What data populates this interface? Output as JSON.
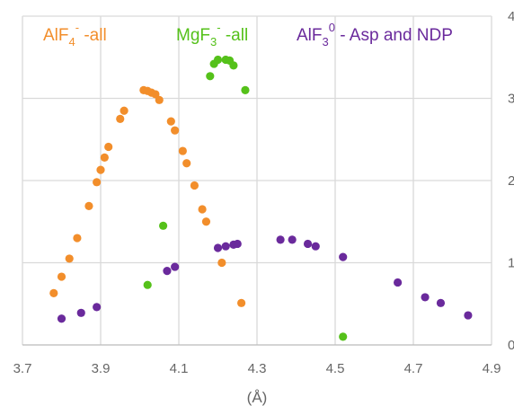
{
  "chart_data": {
    "type": "scatter",
    "xlabel": "(Å)",
    "ylabel": "",
    "xlim": [
      3.7,
      4.9
    ],
    "ylim": [
      0,
      4
    ],
    "x_ticks": [
      "3.7",
      "3.9",
      "4.1",
      "4.3",
      "4.5",
      "4.7",
      "4.9"
    ],
    "x_tick_values": [
      3.7,
      3.9,
      4.1,
      4.3,
      4.5,
      4.7,
      4.9
    ],
    "y_ticks": [
      "0",
      "1",
      "2",
      "3",
      "4"
    ],
    "y_tick_values": [
      0,
      1,
      2,
      3,
      4
    ],
    "grid": true,
    "legend_placement": "top",
    "series": [
      {
        "label_main": "AlF",
        "label_sub": "4",
        "label_sup": "-",
        "label_rest": " -all",
        "color": "#f28e2b",
        "points": [
          {
            "x": 3.78,
            "y": 0.63
          },
          {
            "x": 3.8,
            "y": 0.83
          },
          {
            "x": 3.82,
            "y": 1.05
          },
          {
            "x": 3.84,
            "y": 1.3
          },
          {
            "x": 3.87,
            "y": 1.69
          },
          {
            "x": 3.89,
            "y": 1.98
          },
          {
            "x": 3.9,
            "y": 2.13
          },
          {
            "x": 3.91,
            "y": 2.28
          },
          {
            "x": 3.92,
            "y": 2.41
          },
          {
            "x": 3.95,
            "y": 2.75
          },
          {
            "x": 3.96,
            "y": 2.85
          },
          {
            "x": 4.01,
            "y": 3.1
          },
          {
            "x": 4.02,
            "y": 3.09
          },
          {
            "x": 4.03,
            "y": 3.07
          },
          {
            "x": 4.04,
            "y": 3.05
          },
          {
            "x": 4.05,
            "y": 2.98
          },
          {
            "x": 4.08,
            "y": 2.72
          },
          {
            "x": 4.09,
            "y": 2.61
          },
          {
            "x": 4.11,
            "y": 2.36
          },
          {
            "x": 4.12,
            "y": 2.21
          },
          {
            "x": 4.14,
            "y": 1.94
          },
          {
            "x": 4.16,
            "y": 1.65
          },
          {
            "x": 4.17,
            "y": 1.5
          },
          {
            "x": 4.21,
            "y": 1.0
          },
          {
            "x": 4.26,
            "y": 0.51
          }
        ]
      },
      {
        "label_main": "MgF",
        "label_sub": "3",
        "label_sup": "-",
        "label_rest": " -all",
        "color": "#55c11a",
        "points": [
          {
            "x": 4.02,
            "y": 0.73
          },
          {
            "x": 4.06,
            "y": 1.45
          },
          {
            "x": 4.18,
            "y": 3.27
          },
          {
            "x": 4.19,
            "y": 3.42
          },
          {
            "x": 4.2,
            "y": 3.47
          },
          {
            "x": 4.22,
            "y": 3.47
          },
          {
            "x": 4.23,
            "y": 3.46
          },
          {
            "x": 4.24,
            "y": 3.4
          },
          {
            "x": 4.27,
            "y": 3.1
          },
          {
            "x": 4.52,
            "y": 0.1
          }
        ]
      },
      {
        "label_main": "AlF",
        "label_sub": "3",
        "label_sup": "0",
        "label_rest": " - Asp and NDP",
        "color": "#6a2a9c",
        "points": [
          {
            "x": 3.8,
            "y": 0.32
          },
          {
            "x": 3.85,
            "y": 0.39
          },
          {
            "x": 3.89,
            "y": 0.46
          },
          {
            "x": 4.07,
            "y": 0.9
          },
          {
            "x": 4.09,
            "y": 0.95
          },
          {
            "x": 4.2,
            "y": 1.18
          },
          {
            "x": 4.22,
            "y": 1.2
          },
          {
            "x": 4.24,
            "y": 1.22
          },
          {
            "x": 4.25,
            "y": 1.23
          },
          {
            "x": 4.36,
            "y": 1.28
          },
          {
            "x": 4.39,
            "y": 1.28
          },
          {
            "x": 4.43,
            "y": 1.23
          },
          {
            "x": 4.45,
            "y": 1.2
          },
          {
            "x": 4.52,
            "y": 1.07
          },
          {
            "x": 4.66,
            "y": 0.76
          },
          {
            "x": 4.73,
            "y": 0.58
          },
          {
            "x": 4.77,
            "y": 0.51
          },
          {
            "x": 4.84,
            "y": 0.36
          }
        ]
      }
    ]
  }
}
